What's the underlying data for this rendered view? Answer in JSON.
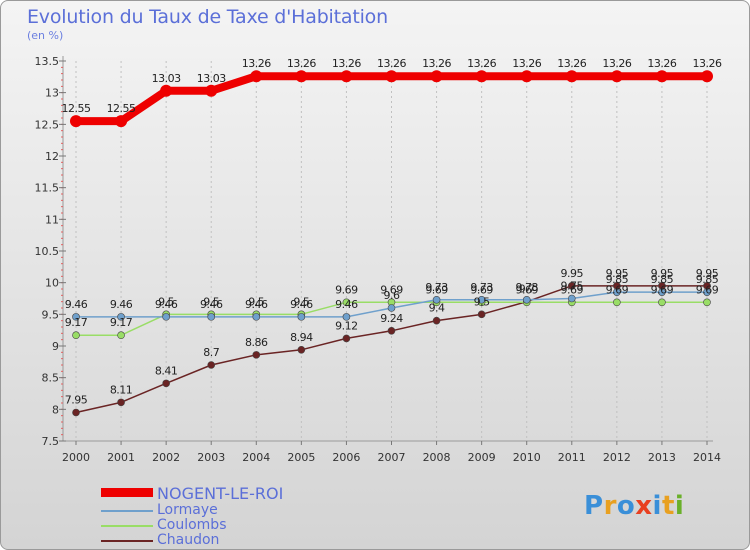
{
  "title": "Evolution du Taux de Taxe d'Habitation",
  "subtitle": "(en %)",
  "chart_data": {
    "type": "line",
    "title": "Evolution du Taux de Taxe d'Habitation",
    "ylabel": "(en %)",
    "xlabel": "",
    "categories": [
      "2000",
      "2001",
      "2002",
      "2003",
      "2004",
      "2005",
      "2006",
      "2007",
      "2008",
      "2009",
      "2010",
      "2011",
      "2012",
      "2013",
      "2014"
    ],
    "ylim": [
      7.5,
      13.5
    ],
    "yticks": [
      7.5,
      8,
      8.5,
      9,
      9.5,
      10,
      10.5,
      11,
      11.5,
      12,
      12.5,
      13,
      13.5
    ],
    "ytick_labels": [
      "7.5",
      "8",
      "8.5",
      "9",
      "9.5",
      "10",
      "10.5",
      "11",
      "11.5",
      "12",
      "12.5",
      "13",
      "13.5"
    ],
    "grid": "dashed vertical",
    "legend_position": "bottom-left",
    "series": [
      {
        "name": "NOGENT-LE-ROI",
        "color": "#ee0000",
        "values": [
          12.55,
          12.55,
          13.03,
          13.03,
          13.26,
          13.26,
          13.26,
          13.26,
          13.26,
          13.26,
          13.26,
          13.26,
          13.26,
          13.26,
          13.26
        ],
        "labels": [
          "12.55",
          "12.55",
          "13.03",
          "13.03",
          "13.26",
          "13.26",
          "13.26",
          "13.26",
          "13.26",
          "13.26",
          "13.26",
          "13.26",
          "13.26",
          "13.26",
          "13.26"
        ]
      },
      {
        "name": "Lormaye",
        "color": "#6fa0cc",
        "values": [
          9.46,
          9.46,
          9.46,
          9.46,
          9.46,
          9.46,
          9.46,
          9.6,
          9.73,
          9.73,
          9.73,
          9.75,
          9.85,
          9.85,
          9.85
        ],
        "labels": [
          "9.46",
          "9.46",
          "9.46",
          "9.46",
          "9.46",
          "9.46",
          "9.46",
          "9.6",
          "9.73",
          "9.73",
          "9.73",
          "9.75",
          "9.85",
          "9.85",
          "9.85"
        ]
      },
      {
        "name": "Coulombs",
        "color": "#99dd66",
        "values": [
          9.17,
          9.17,
          9.5,
          9.5,
          9.5,
          9.5,
          9.69,
          9.69,
          9.69,
          9.69,
          9.69,
          9.69,
          9.69,
          9.69,
          9.69
        ],
        "labels": [
          "9.17",
          "9.17",
          "9.5",
          "9.5",
          "9.5",
          "9.5",
          "9.69",
          "9.69",
          "9.69",
          "9.69",
          "9.69",
          "9.69",
          "9.69",
          "9.69",
          "9.69"
        ]
      },
      {
        "name": "Chaudon",
        "color": "#6a2424",
        "values": [
          7.95,
          8.11,
          8.41,
          8.7,
          8.86,
          8.94,
          9.12,
          9.24,
          9.4,
          9.5,
          9.7,
          9.95,
          9.95,
          9.95,
          9.95
        ],
        "labels": [
          "7.95",
          "8.11",
          "8.41",
          "8.7",
          "8.86",
          "8.94",
          "9.12",
          "9.24",
          "9.4",
          "9.5",
          "9.7",
          "9.95",
          "9.95",
          "9.95",
          "9.95"
        ]
      }
    ]
  },
  "legend": [
    {
      "label": "NOGENT-LE-ROI",
      "color": "#ee0000"
    },
    {
      "label": "Lormaye",
      "color": "#6fa0cc"
    },
    {
      "label": "Coulombs",
      "color": "#99dd66"
    },
    {
      "label": "Chaudon",
      "color": "#6a2424"
    }
  ],
  "logo": {
    "p": "P",
    "r": "r",
    "o": "o",
    "x": "x",
    "i1": "i",
    "t": "t",
    "i2": "i"
  }
}
